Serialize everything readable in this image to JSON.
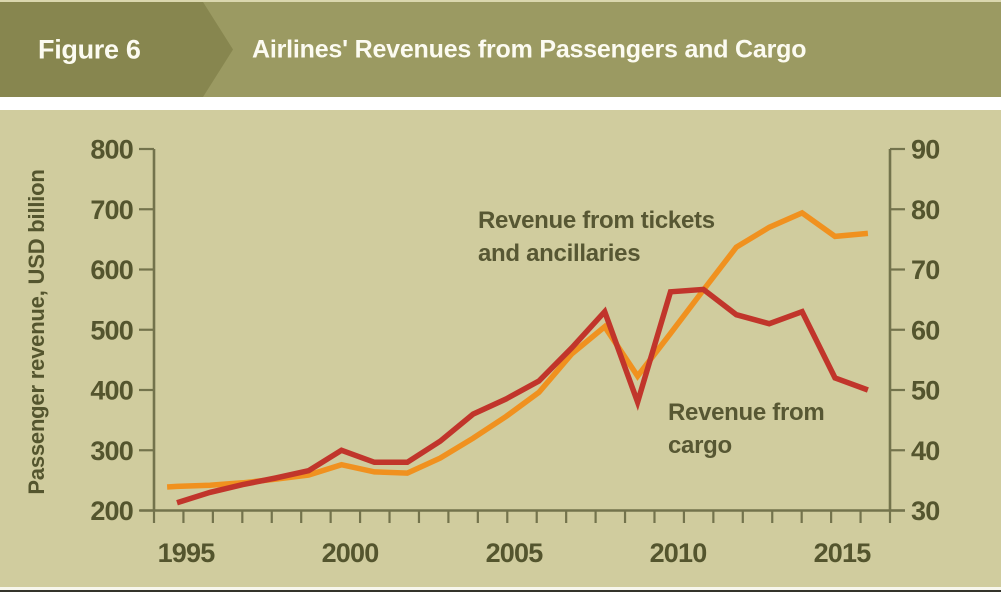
{
  "header": {
    "figure_label": "Figure 6",
    "title": "Airlines' Revenues from Passengers and Cargo"
  },
  "colors": {
    "header_band": "#9b9a62",
    "figure_tag_box": "#87864f",
    "header_text": "#fcfbf1",
    "chart_background": "#d0cc9e",
    "axis_and_text": "#54552e",
    "axis_line": "#73734c",
    "tickets_line": "#f0911f",
    "cargo_line": "#c1352b"
  },
  "chart_data": {
    "type": "line",
    "title": "Airlines' Revenues from Passengers and Cargo",
    "x": [
      1995,
      1996,
      1997,
      1998,
      1999,
      2000,
      2001,
      2002,
      2003,
      2004,
      2005,
      2006,
      2007,
      2008,
      2009,
      2010,
      2011,
      2012,
      2013,
      2014,
      2015,
      2016
    ],
    "series": [
      {
        "name": "Revenue from tickets and ancillaries",
        "axis": "left",
        "color": "#f0911f",
        "lead_year": 1994.7,
        "lead_value": 239,
        "values": [
          240,
          242,
          246,
          252,
          259,
          276,
          264,
          262,
          287,
          320,
          356,
          396,
          460,
          505,
          423,
          494,
          566,
          637,
          670,
          694,
          655,
          660
        ]
      },
      {
        "name": "Revenue from cargo",
        "axis": "right",
        "color": "#c1352b",
        "values": [
          31.3,
          33,
          34.3,
          35.4,
          36.6,
          40,
          38,
          38,
          41.5,
          46,
          48.5,
          51.5,
          57,
          63,
          48,
          66.3,
          66.7,
          62.5,
          61,
          63,
          52,
          50
        ]
      }
    ],
    "left_axis": {
      "label": "Passenger revenue, USD billion",
      "range": [
        200,
        800
      ],
      "ticks": [
        800,
        700,
        600,
        500,
        400,
        300,
        200
      ]
    },
    "right_axis": {
      "label": "",
      "range": [
        30,
        90
      ],
      "ticks": [
        90,
        80,
        70,
        60,
        50,
        40,
        30
      ]
    },
    "x_axis": {
      "labeled_years": [
        1995,
        2000,
        2005,
        2010,
        2015
      ],
      "minor_tick_count": 26,
      "range_years": [
        1994.3,
        2016.6
      ]
    },
    "annotations": [
      {
        "lines": [
          "Revenue from tickets",
          "and ancillaries"
        ],
        "x": 478,
        "y": 228,
        "for_series": "Revenue from tickets and ancillaries"
      },
      {
        "lines": [
          "Revenue from",
          "cargo"
        ],
        "x": 668,
        "y": 420,
        "for_series": "Revenue from cargo"
      }
    ],
    "grid": false,
    "legend_position": "none"
  }
}
